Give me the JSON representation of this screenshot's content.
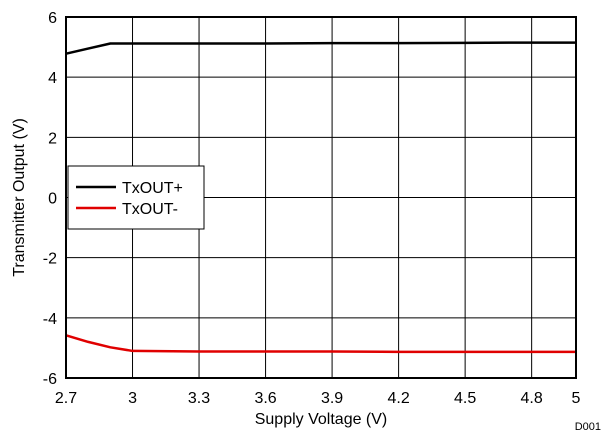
{
  "chart_data": {
    "type": "line",
    "xlabel": "Supply Voltage (V)",
    "ylabel": "Transmitter Output (V)",
    "xlim": [
      2.7,
      5
    ],
    "ylim": [
      -6,
      6
    ],
    "x_ticks": [
      2.7,
      3,
      3.3,
      3.6,
      3.9,
      4.2,
      4.5,
      4.8,
      5
    ],
    "x_tick_labels": [
      "2.7",
      "3",
      "3.3",
      "3.6",
      "3.9",
      "4.2",
      "4.5",
      "4.8",
      "5"
    ],
    "y_ticks": [
      -6,
      -4,
      -2,
      0,
      2,
      4,
      6
    ],
    "y_tick_labels": [
      "-6",
      "-4",
      "-2",
      "0",
      "2",
      "4",
      "6"
    ],
    "grid": true,
    "legend_position": "middle-left",
    "figure_id": "D001",
    "series": [
      {
        "name": "TxOUT+",
        "color": "#000000",
        "x": [
          2.7,
          2.8,
          2.9,
          3.0,
          3.3,
          3.6,
          3.9,
          4.2,
          4.5,
          4.8,
          5.0
        ],
        "y": [
          4.78,
          4.95,
          5.12,
          5.12,
          5.12,
          5.12,
          5.13,
          5.13,
          5.14,
          5.15,
          5.15
        ]
      },
      {
        "name": "TxOUT-",
        "color": "#e00000",
        "x": [
          2.7,
          2.8,
          2.9,
          3.0,
          3.3,
          3.6,
          3.9,
          4.2,
          4.5,
          4.8,
          5.0
        ],
        "y": [
          -4.58,
          -4.8,
          -4.98,
          -5.1,
          -5.12,
          -5.12,
          -5.12,
          -5.13,
          -5.13,
          -5.13,
          -5.13
        ]
      }
    ]
  }
}
